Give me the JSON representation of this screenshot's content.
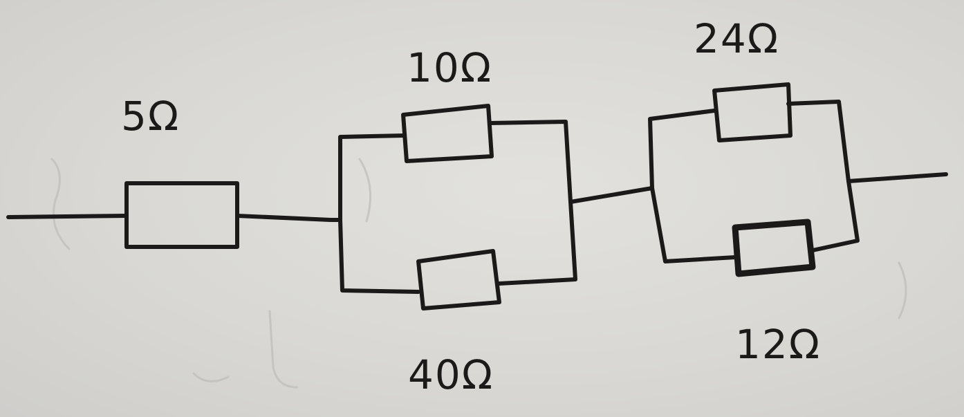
{
  "diagram": {
    "resistors": {
      "r1": {
        "label": "5Ω"
      },
      "r2": {
        "label": "10Ω"
      },
      "r3": {
        "label": "40Ω"
      },
      "r4": {
        "label": "24Ω"
      },
      "r5": {
        "label": "12Ω"
      }
    }
  }
}
